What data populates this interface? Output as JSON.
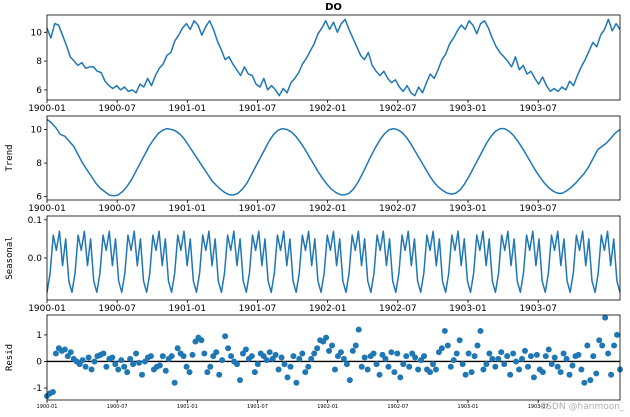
{
  "chart_data": [
    {
      "type": "line",
      "title": "DO",
      "ylabel": "",
      "ylim": [
        5.3,
        11.2
      ],
      "yticks": [
        6,
        8,
        10
      ],
      "xlim": [
        0,
        49
      ],
      "xtick_labels": [
        "1900-01",
        "1900-07",
        "1901-01",
        "1901-07",
        "1902-01",
        "1902-07",
        "1903-01",
        "1903-07"
      ],
      "xtick_months": [
        0,
        6,
        12,
        18,
        24,
        30,
        36,
        42
      ],
      "series": [
        {
          "name": "DO",
          "color": "#1f77b4",
          "values": [
            10.3,
            9.6,
            10.6,
            10.5,
            9.8,
            9.1,
            8.3,
            8.0,
            7.7,
            7.9,
            7.5,
            7.6,
            7.6,
            7.3,
            7.2,
            6.6,
            6.3,
            6.1,
            6.3,
            6.0,
            6.2,
            5.9,
            6.0,
            5.8,
            6.4,
            6.2,
            6.8,
            6.3,
            7.0,
            7.5,
            7.8,
            8.4,
            8.6,
            9.4,
            9.8,
            10.3,
            10.6,
            10.2,
            10.8,
            10.5,
            9.8,
            10.4,
            10.8,
            10.2,
            9.4,
            8.8,
            8.1,
            8.3,
            7.8,
            7.4,
            7.0,
            7.6,
            7.1,
            7.0,
            6.4,
            6.2,
            6.8,
            6.0,
            6.3,
            6.0,
            5.6,
            6.1,
            5.8,
            6.5,
            6.8,
            7.2,
            7.8,
            8.2,
            8.7,
            9.2,
            9.9,
            10.3,
            10.8,
            10.2,
            10.7,
            10.0,
            10.6,
            10.9,
            10.2,
            9.6,
            9.0,
            8.4,
            8.1,
            8.6,
            7.7,
            7.3,
            7.0,
            7.3,
            6.8,
            6.5,
            6.7,
            6.2,
            5.9,
            6.3,
            5.8,
            5.6,
            6.2,
            5.8,
            6.5,
            7.1,
            6.8,
            7.4,
            8.1,
            8.5,
            9.2,
            9.6,
            10.1,
            10.5,
            10.2,
            10.8,
            10.5,
            9.9,
            10.6,
            10.8,
            10.3,
            9.6,
            9.0,
            8.6,
            8.3,
            8.0,
            7.6,
            8.3,
            7.4,
            7.7,
            7.1,
            7.3,
            6.8,
            6.4,
            6.9,
            6.3,
            5.9,
            6.1,
            5.9,
            6.2,
            6.0,
            6.6,
            6.3,
            7.0,
            7.6,
            8.1,
            8.7,
            9.3,
            9.0,
            9.8,
            10.2,
            10.9,
            10.1,
            10.6,
            10.2
          ]
        }
      ]
    },
    {
      "type": "line",
      "title": "",
      "ylabel": "Trend",
      "ylim": [
        5.8,
        10.8
      ],
      "yticks": [
        6,
        8,
        10
      ],
      "xlim": [
        0,
        49
      ],
      "xtick_labels": [
        "1900-01",
        "1900-07",
        "1901-01",
        "1901-07",
        "1902-01",
        "1902-07",
        "1903-01",
        "1903-07"
      ],
      "xtick_months": [
        0,
        6,
        12,
        18,
        24,
        30,
        36,
        42
      ],
      "series": [
        {
          "name": "Trend",
          "color": "#1f77b4",
          "values": [
            10.6,
            10.4,
            10.1,
            9.7,
            9.6,
            9.3,
            9.0,
            8.5,
            8.0,
            7.6,
            7.2,
            6.8,
            6.5,
            6.3,
            6.1,
            6.05,
            6.1,
            6.3,
            6.6,
            7.0,
            7.5,
            8.0,
            8.5,
            9.0,
            9.4,
            9.75,
            9.95,
            10.05,
            10.0,
            9.9,
            9.7,
            9.4,
            9.0,
            8.6,
            8.2,
            7.8,
            7.4,
            7.0,
            6.7,
            6.45,
            6.25,
            6.12,
            6.1,
            6.2,
            6.45,
            6.8,
            7.3,
            7.8,
            8.3,
            8.8,
            9.3,
            9.7,
            9.95,
            10.05,
            10.0,
            9.85,
            9.6,
            9.25,
            8.85,
            8.4,
            7.95,
            7.5,
            7.1,
            6.75,
            6.45,
            6.25,
            6.12,
            6.1,
            6.2,
            6.45,
            6.85,
            7.35,
            7.9,
            8.45,
            8.95,
            9.4,
            9.75,
            9.98,
            10.05,
            9.98,
            9.8,
            9.5,
            9.1,
            8.65,
            8.2,
            7.75,
            7.3,
            6.9,
            6.6,
            6.38,
            6.22,
            6.15,
            6.2,
            6.4,
            6.75,
            7.2,
            7.7,
            8.2,
            8.7,
            9.2,
            9.6,
            9.9,
            10.05,
            10.05,
            9.9,
            9.65,
            9.3,
            8.9,
            8.45,
            8.0,
            7.55,
            7.15,
            6.8,
            6.52,
            6.32,
            6.2,
            6.2,
            6.35,
            6.55,
            6.8,
            7.1,
            7.4,
            7.8,
            8.3,
            8.8,
            9.0,
            9.2,
            9.5,
            9.8,
            10.0
          ]
        }
      ]
    },
    {
      "type": "line",
      "title": "",
      "ylabel": "Seasonal",
      "ylim": [
        -0.11,
        0.11
      ],
      "yticks": [
        0.0,
        0.1
      ],
      "xlim": [
        0,
        49
      ],
      "xtick_labels": [
        "1900-01",
        "1900-07",
        "1901-01",
        "1901-07",
        "1902-01",
        "1902-07",
        "1903-01",
        "1903-07"
      ],
      "xtick_months": [
        0,
        6,
        12,
        18,
        24,
        30,
        36,
        42
      ],
      "period": 8,
      "series": [
        {
          "name": "Seasonal",
          "color": "#1f77b4",
          "pattern": [
            -0.09,
            -0.04,
            0.06,
            0.02,
            0.07,
            -0.02,
            0.05,
            -0.06
          ],
          "cycles": 23
        }
      ]
    },
    {
      "type": "scatter",
      "title": "",
      "ylabel": "Resid",
      "ylim": [
        -1.45,
        1.75
      ],
      "yticks": [
        -1,
        0,
        1
      ],
      "zero_line": true,
      "xlim": [
        0,
        49
      ],
      "xtick_labels": [
        "1900-01",
        "1900-07",
        "1901-01",
        "1901-07",
        "1902-01",
        "1902-07",
        "1903-01",
        "1903-07"
      ],
      "xtick_months": [
        0,
        6,
        12,
        18,
        24,
        30,
        36,
        42
      ],
      "series": [
        {
          "name": "Resid",
          "color": "#1f77b4",
          "values": [
            -1.3,
            -1.2,
            -1.15,
            0.3,
            0.5,
            0.4,
            0.45,
            0.2,
            0.35,
            0.1,
            0.0,
            -0.1,
            0.05,
            -0.2,
            0.15,
            -0.3,
            0.0,
            0.2,
            0.25,
            0.3,
            -0.2,
            0.1,
            0.15,
            -0.1,
            -0.3,
            0.05,
            -0.2,
            -0.4,
            0.1,
            -0.1,
            0.3,
            -0.05,
            -0.5,
            0.0,
            0.15,
            0.2,
            -0.3,
            -0.2,
            -0.15,
            0.2,
            -0.35,
            0.1,
            0.2,
            -0.8,
            0.5,
            0.3,
            0.2,
            -0.2,
            -0.4,
            0.25,
            0.75,
            0.9,
            0.8,
            0.3,
            -0.4,
            -0.2,
            0.2,
            0.35,
            -0.5,
            0.05,
            0.95,
            0.5,
            0.2,
            0.0,
            -0.1,
            -0.7,
            0.3,
            0.45,
            0.1,
            0.2,
            -0.4,
            -0.1,
            0.3,
            0.2,
            0.05,
            0.35,
            0.1,
            0.25,
            -0.3,
            0.15,
            -0.1,
            -0.6,
            -0.2,
            0.2,
            -0.8,
            0.1,
            0.3,
            -0.4,
            -0.2,
            0.1,
            0.3,
            0.5,
            0.8,
            0.75,
            0.9,
            0.4,
            0.6,
            -0.3,
            0.2,
            0.35,
            0.1,
            -0.1,
            -0.7,
            0.4,
            0.6,
            1.2,
            -0.2,
            0.15,
            -0.3,
            0.2,
            0.3,
            -0.1,
            -0.5,
            0.25,
            0.1,
            -0.2,
            0.35,
            -0.4,
            0.3,
            -0.6,
            -0.1,
            0.2,
            -0.2,
            0.3,
            0.15,
            -0.3,
            0.05,
            0.2,
            -0.3,
            -0.4,
            -0.1,
            -0.3,
            0.35,
            0.5,
            1.15,
            0.6,
            -0.2,
            0.05,
            0.3,
            0.8,
            -0.1,
            -0.5,
            0.3,
            -0.4,
            0.2,
            0.6,
            1.15,
            -0.3,
            -0.1,
            0.3,
            0.1,
            -0.2,
            0.1,
            0.35,
            -0.1,
            0.2,
            -0.5,
            0.3,
            0.0,
            -0.3,
            0.1,
            0.4,
            -0.2,
            0.2,
            -0.6,
            0.25,
            -0.3,
            -0.4,
            0.2,
            0.45,
            -0.1,
            0.15,
            -0.2,
            -0.4,
            0.3,
            0.1,
            -0.5,
            -0.15,
            0.2,
            0.25,
            -0.3,
            -0.8,
            0.6,
            -0.7,
            0.2,
            -0.45,
            0.8,
            0.6,
            1.65,
            0.3,
            -0.5,
            0.6,
            1.0,
            -0.3
          ]
        }
      ]
    }
  ],
  "watermark": "CSDN @hanmoon_"
}
